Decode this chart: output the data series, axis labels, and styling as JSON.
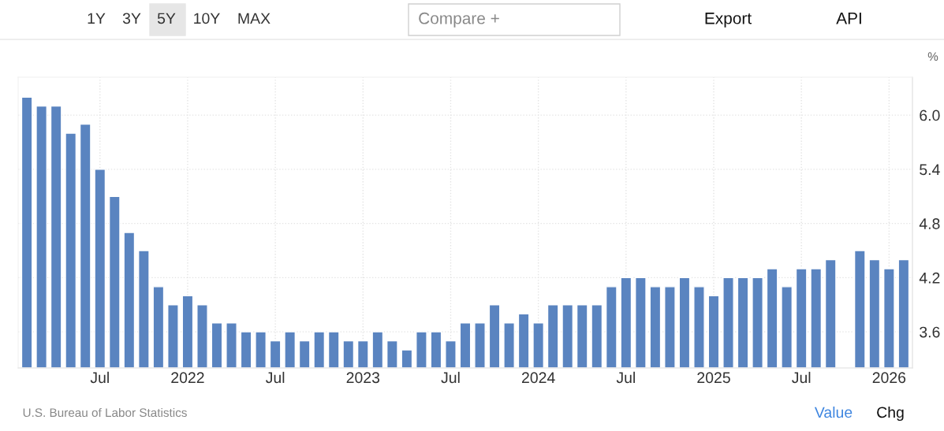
{
  "chart_data": {
    "type": "bar",
    "categories": [
      null,
      null,
      null,
      null,
      null,
      "Jul",
      null,
      null,
      null,
      null,
      null,
      "2022",
      null,
      null,
      null,
      null,
      null,
      "Jul",
      null,
      null,
      null,
      null,
      null,
      "2023",
      null,
      null,
      null,
      null,
      null,
      "Jul",
      null,
      null,
      null,
      null,
      null,
      "2024",
      null,
      null,
      null,
      null,
      null,
      "Jul",
      null,
      null,
      null,
      null,
      null,
      "2025",
      null,
      null,
      null,
      null,
      null,
      "Jul",
      null,
      null,
      null,
      null,
      null,
      "2026",
      null
    ],
    "values": [
      6.2,
      6.1,
      6.1,
      5.8,
      5.9,
      5.4,
      5.1,
      4.7,
      4.5,
      4.1,
      3.9,
      4.0,
      3.9,
      3.7,
      3.7,
      3.6,
      3.6,
      3.5,
      3.6,
      3.5,
      3.6,
      3.6,
      3.5,
      3.5,
      3.6,
      3.5,
      3.4,
      3.6,
      3.6,
      3.5,
      3.7,
      3.7,
      3.9,
      3.7,
      3.8,
      3.7,
      3.9,
      3.9,
      3.9,
      3.9,
      4.1,
      4.2,
      4.2,
      4.1,
      4.1,
      4.2,
      4.1,
      4.0,
      4.2,
      4.2,
      4.2,
      4.3,
      4.1,
      4.3,
      4.3,
      4.4,
      null,
      4.5,
      4.4,
      4.3,
      4.4
    ],
    "color": "#5a84c0",
    "ylabel": "%",
    "ylim": [
      3.2,
      6.42
    ],
    "yticks": [
      3.6,
      4.2,
      4.8,
      5.4,
      {
        "value": 6.0,
        "label": "6.0"
      }
    ],
    "grid": true,
    "annotations": [
      "1Y",
      "3Y",
      "5Y",
      "10Y",
      "MAX",
      "Compare +",
      "Export",
      "API",
      "U.S. Bureau of Labor Statistics",
      "Value",
      "Chg"
    ]
  }
}
